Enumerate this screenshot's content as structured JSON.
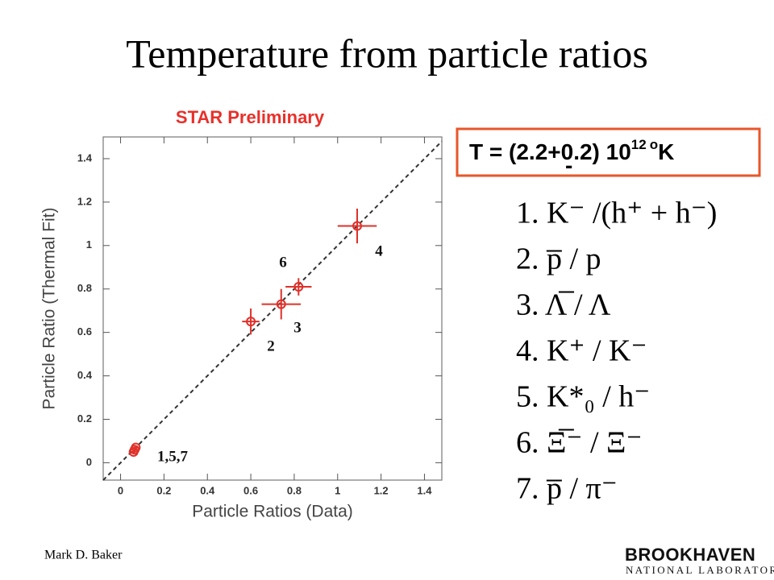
{
  "chart_data": {
    "type": "scatter",
    "title": "Temperature from particle ratios",
    "subtitle": "STAR Preliminary",
    "xlabel": "Particle Ratios (Data)",
    "ylabel": "Particle Ratio (Thermal Fit)",
    "xlim": [
      -0.08,
      1.48
    ],
    "ylim": [
      -0.08,
      1.5
    ],
    "xticks": [
      0,
      0.2,
      0.4,
      0.6,
      0.8,
      1,
      1.2,
      1.4
    ],
    "yticks": [
      0,
      0.2,
      0.4,
      0.6,
      0.8,
      1,
      1.2,
      1.4
    ],
    "series": [
      {
        "color": "#e0302a",
        "x": [
          0.06,
          0.07,
          0.065,
          0.6,
          0.74,
          0.82,
          1.09
        ],
        "values": [
          0.05,
          0.07,
          0.06,
          0.65,
          0.73,
          0.81,
          1.09
        ],
        "x_errors": [
          0.01,
          0.01,
          0.01,
          0.04,
          0.09,
          0.06,
          0.09
        ],
        "y_errors": [
          0.01,
          0.01,
          0.01,
          0.06,
          0.07,
          0.04,
          0.08
        ]
      }
    ],
    "annotations": [
      "4",
      "6",
      "3",
      "2",
      "1,5,7"
    ]
  },
  "temperature": [
    "T = (2.2",
    "+",
    "-",
    "0.2) 10",
    "12",
    "o",
    "K"
  ],
  "ratios": [
    "1. K⁻ /(h⁺ + h⁻)",
    "2. p̅ / p",
    "3. Λ̅ / Λ",
    "4. K⁺ / K⁻",
    "5. K*₀ / h⁻",
    "6. Ξ̅⁻ / Ξ⁻",
    "7. p̅ / π⁻"
  ],
  "footer": {
    "author": "Mark D. Baker",
    "logo": "BROOKHAVEN",
    "logo_sub": "NATIONAL LABORATORY"
  }
}
